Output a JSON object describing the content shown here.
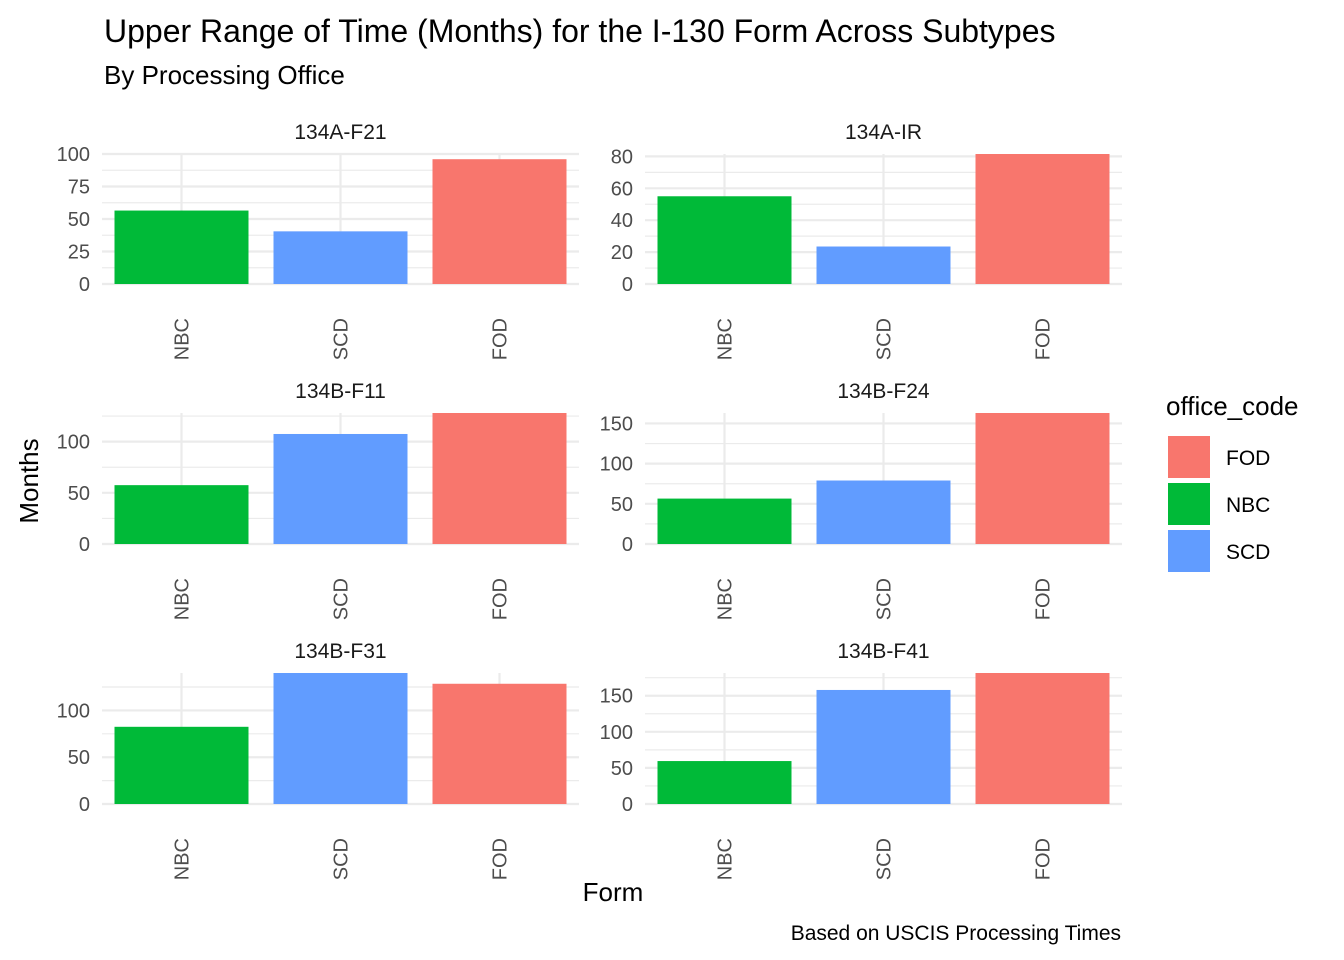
{
  "chart_data": {
    "type": "bar",
    "title": "Upper Range of Time (Months) for the I-130 Form Across Subtypes",
    "subtitle": "By Processing Office",
    "xlabel": "Form",
    "ylabel": "Months",
    "caption": "Based on USCIS Processing Times",
    "categories": [
      "NBC",
      "SCD",
      "FOD"
    ],
    "grid": true,
    "legend": {
      "title": "office_code",
      "position": "right",
      "entries": [
        {
          "label": "FOD",
          "color": "#F8766D"
        },
        {
          "label": "NBC",
          "color": "#00BA38"
        },
        {
          "label": "SCD",
          "color": "#619CFF"
        }
      ]
    },
    "colors": {
      "NBC": "#00BA38",
      "SCD": "#619CFF",
      "FOD": "#F8766D"
    },
    "facets": [
      {
        "name": "134A-F21",
        "values": [
          56.5,
          40.5,
          96
        ],
        "ylim": [
          0,
          100
        ],
        "yticks": [
          0,
          25,
          50,
          75,
          100
        ]
      },
      {
        "name": "134A-IR",
        "values": [
          55,
          23.5,
          81.5
        ],
        "ylim": [
          0,
          81.5
        ],
        "yticks": [
          0,
          20,
          40,
          60,
          80
        ]
      },
      {
        "name": "134B-F11",
        "values": [
          57.5,
          107.5,
          128
        ],
        "ylim": [
          0,
          128
        ],
        "yticks": [
          0,
          50,
          100
        ]
      },
      {
        "name": "134B-F24",
        "values": [
          56.5,
          79,
          163
        ],
        "ylim": [
          0,
          163
        ],
        "yticks": [
          0,
          50,
          100,
          150
        ]
      },
      {
        "name": "134B-F31",
        "values": [
          82.5,
          140,
          128.5
        ],
        "ylim": [
          0,
          140
        ],
        "yticks": [
          0,
          50,
          100
        ]
      },
      {
        "name": "134B-F41",
        "values": [
          59.5,
          158,
          181.5
        ],
        "ylim": [
          0,
          181.5
        ],
        "yticks": [
          0,
          50,
          100,
          150
        ]
      }
    ]
  }
}
